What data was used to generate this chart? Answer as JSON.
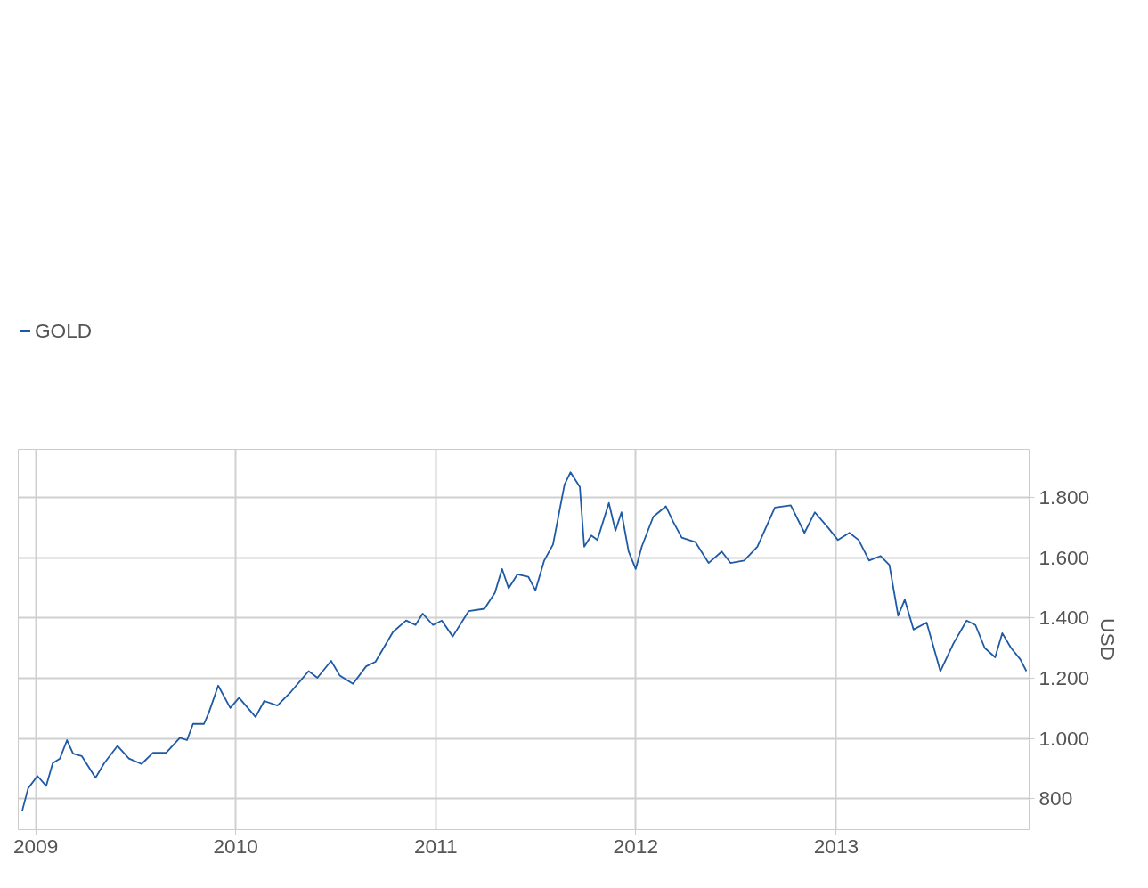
{
  "chart_data": {
    "type": "line",
    "ylabel": "USD",
    "legend": "top left",
    "grid": true,
    "marker": "none",
    "line_style": "solid",
    "xlim": [
      "2008-11-30",
      "2013-12-19"
    ],
    "ylim": [
      698,
      1960
    ],
    "xticks": [
      {
        "value": "2009-01-01",
        "label": "2009"
      },
      {
        "value": "2010-01-01",
        "label": "2010"
      },
      {
        "value": "2011-01-01",
        "label": "2011"
      },
      {
        "value": "2012-01-01",
        "label": "2012"
      },
      {
        "value": "2013-01-01",
        "label": "2013"
      }
    ],
    "yticks": [
      800,
      {
        "value": 1000,
        "label": "1.000"
      },
      {
        "value": 1200,
        "label": "1.200"
      },
      {
        "value": 1400,
        "label": "1.400"
      },
      {
        "value": 1600,
        "label": "1.600"
      },
      {
        "value": 1800,
        "label": "1.800"
      }
    ],
    "x": [
      "2008-12-07",
      "2008-12-18",
      "2009-01-04",
      "2009-01-20",
      "2009-02-01",
      "2009-02-14",
      "2009-02-27",
      "2009-03-10",
      "2009-03-26",
      "2009-04-20",
      "2009-05-06",
      "2009-05-30",
      "2009-06-20",
      "2009-07-13",
      "2009-08-03",
      "2009-08-27",
      "2009-09-21",
      "2009-10-04",
      "2009-10-15",
      "2009-11-04",
      "2009-11-13",
      "2009-11-30",
      "2009-12-22",
      "2010-01-07",
      "2010-02-06",
      "2010-02-22",
      "2010-03-18",
      "2010-04-12",
      "2010-05-14",
      "2010-05-30",
      "2010-06-24",
      "2010-07-10",
      "2010-08-03",
      "2010-08-27",
      "2010-09-13",
      "2010-10-15",
      "2010-11-08",
      "2010-11-25",
      "2010-12-08",
      "2010-12-27",
      "2011-01-12",
      "2011-02-01",
      "2011-03-02",
      "2011-03-31",
      "2011-04-19",
      "2011-05-02",
      "2011-05-14",
      "2011-05-30",
      "2011-06-19",
      "2011-07-02",
      "2011-07-18",
      "2011-08-03",
      "2011-08-24",
      "2011-09-04",
      "2011-09-21",
      "2011-09-29",
      "2011-10-12",
      "2011-10-23",
      "2011-11-13",
      "2011-11-25",
      "2011-12-06",
      "2011-12-19",
      "2012-01-01",
      "2012-01-12",
      "2012-02-02",
      "2012-02-25",
      "2012-03-09",
      "2012-03-25",
      "2012-04-19",
      "2012-05-13",
      "2012-06-06",
      "2012-06-22",
      "2012-07-17",
      "2012-08-10",
      "2012-09-11",
      "2012-10-10",
      "2012-11-04",
      "2012-11-23",
      "2012-12-18",
      "2013-01-04",
      "2013-01-25",
      "2013-02-11",
      "2013-03-02",
      "2013-03-23",
      "2013-04-08",
      "2013-04-24",
      "2013-05-06",
      "2013-05-22",
      "2013-06-15",
      "2013-07-10",
      "2013-08-03",
      "2013-08-27",
      "2013-09-12",
      "2013-09-29",
      "2013-10-18",
      "2013-10-31",
      "2013-11-16",
      "2013-12-03",
      "2013-12-14"
    ],
    "series": [
      {
        "name": "GOLD",
        "color": "#1f5aa6",
        "values": [
          759,
          835,
          876,
          843,
          919,
          934,
          995,
          950,
          942,
          870,
          919,
          976,
          934,
          916,
          953,
          953,
          1003,
          995,
          1049,
          1049,
          1087,
          1176,
          1102,
          1136,
          1072,
          1125,
          1110,
          1156,
          1224,
          1202,
          1258,
          1209,
          1182,
          1240,
          1255,
          1354,
          1392,
          1377,
          1415,
          1377,
          1392,
          1339,
          1423,
          1431,
          1484,
          1563,
          1499,
          1545,
          1537,
          1492,
          1591,
          1644,
          1843,
          1884,
          1835,
          1637,
          1674,
          1659,
          1782,
          1690,
          1751,
          1621,
          1563,
          1637,
          1736,
          1771,
          1721,
          1667,
          1652,
          1583,
          1621,
          1583,
          1591,
          1637,
          1767,
          1774,
          1683,
          1751,
          1698,
          1659,
          1683,
          1659,
          1591,
          1606,
          1576,
          1408,
          1461,
          1362,
          1385,
          1224,
          1316,
          1392,
          1377,
          1301,
          1270,
          1350,
          1301,
          1263,
          1224
        ]
      }
    ]
  }
}
